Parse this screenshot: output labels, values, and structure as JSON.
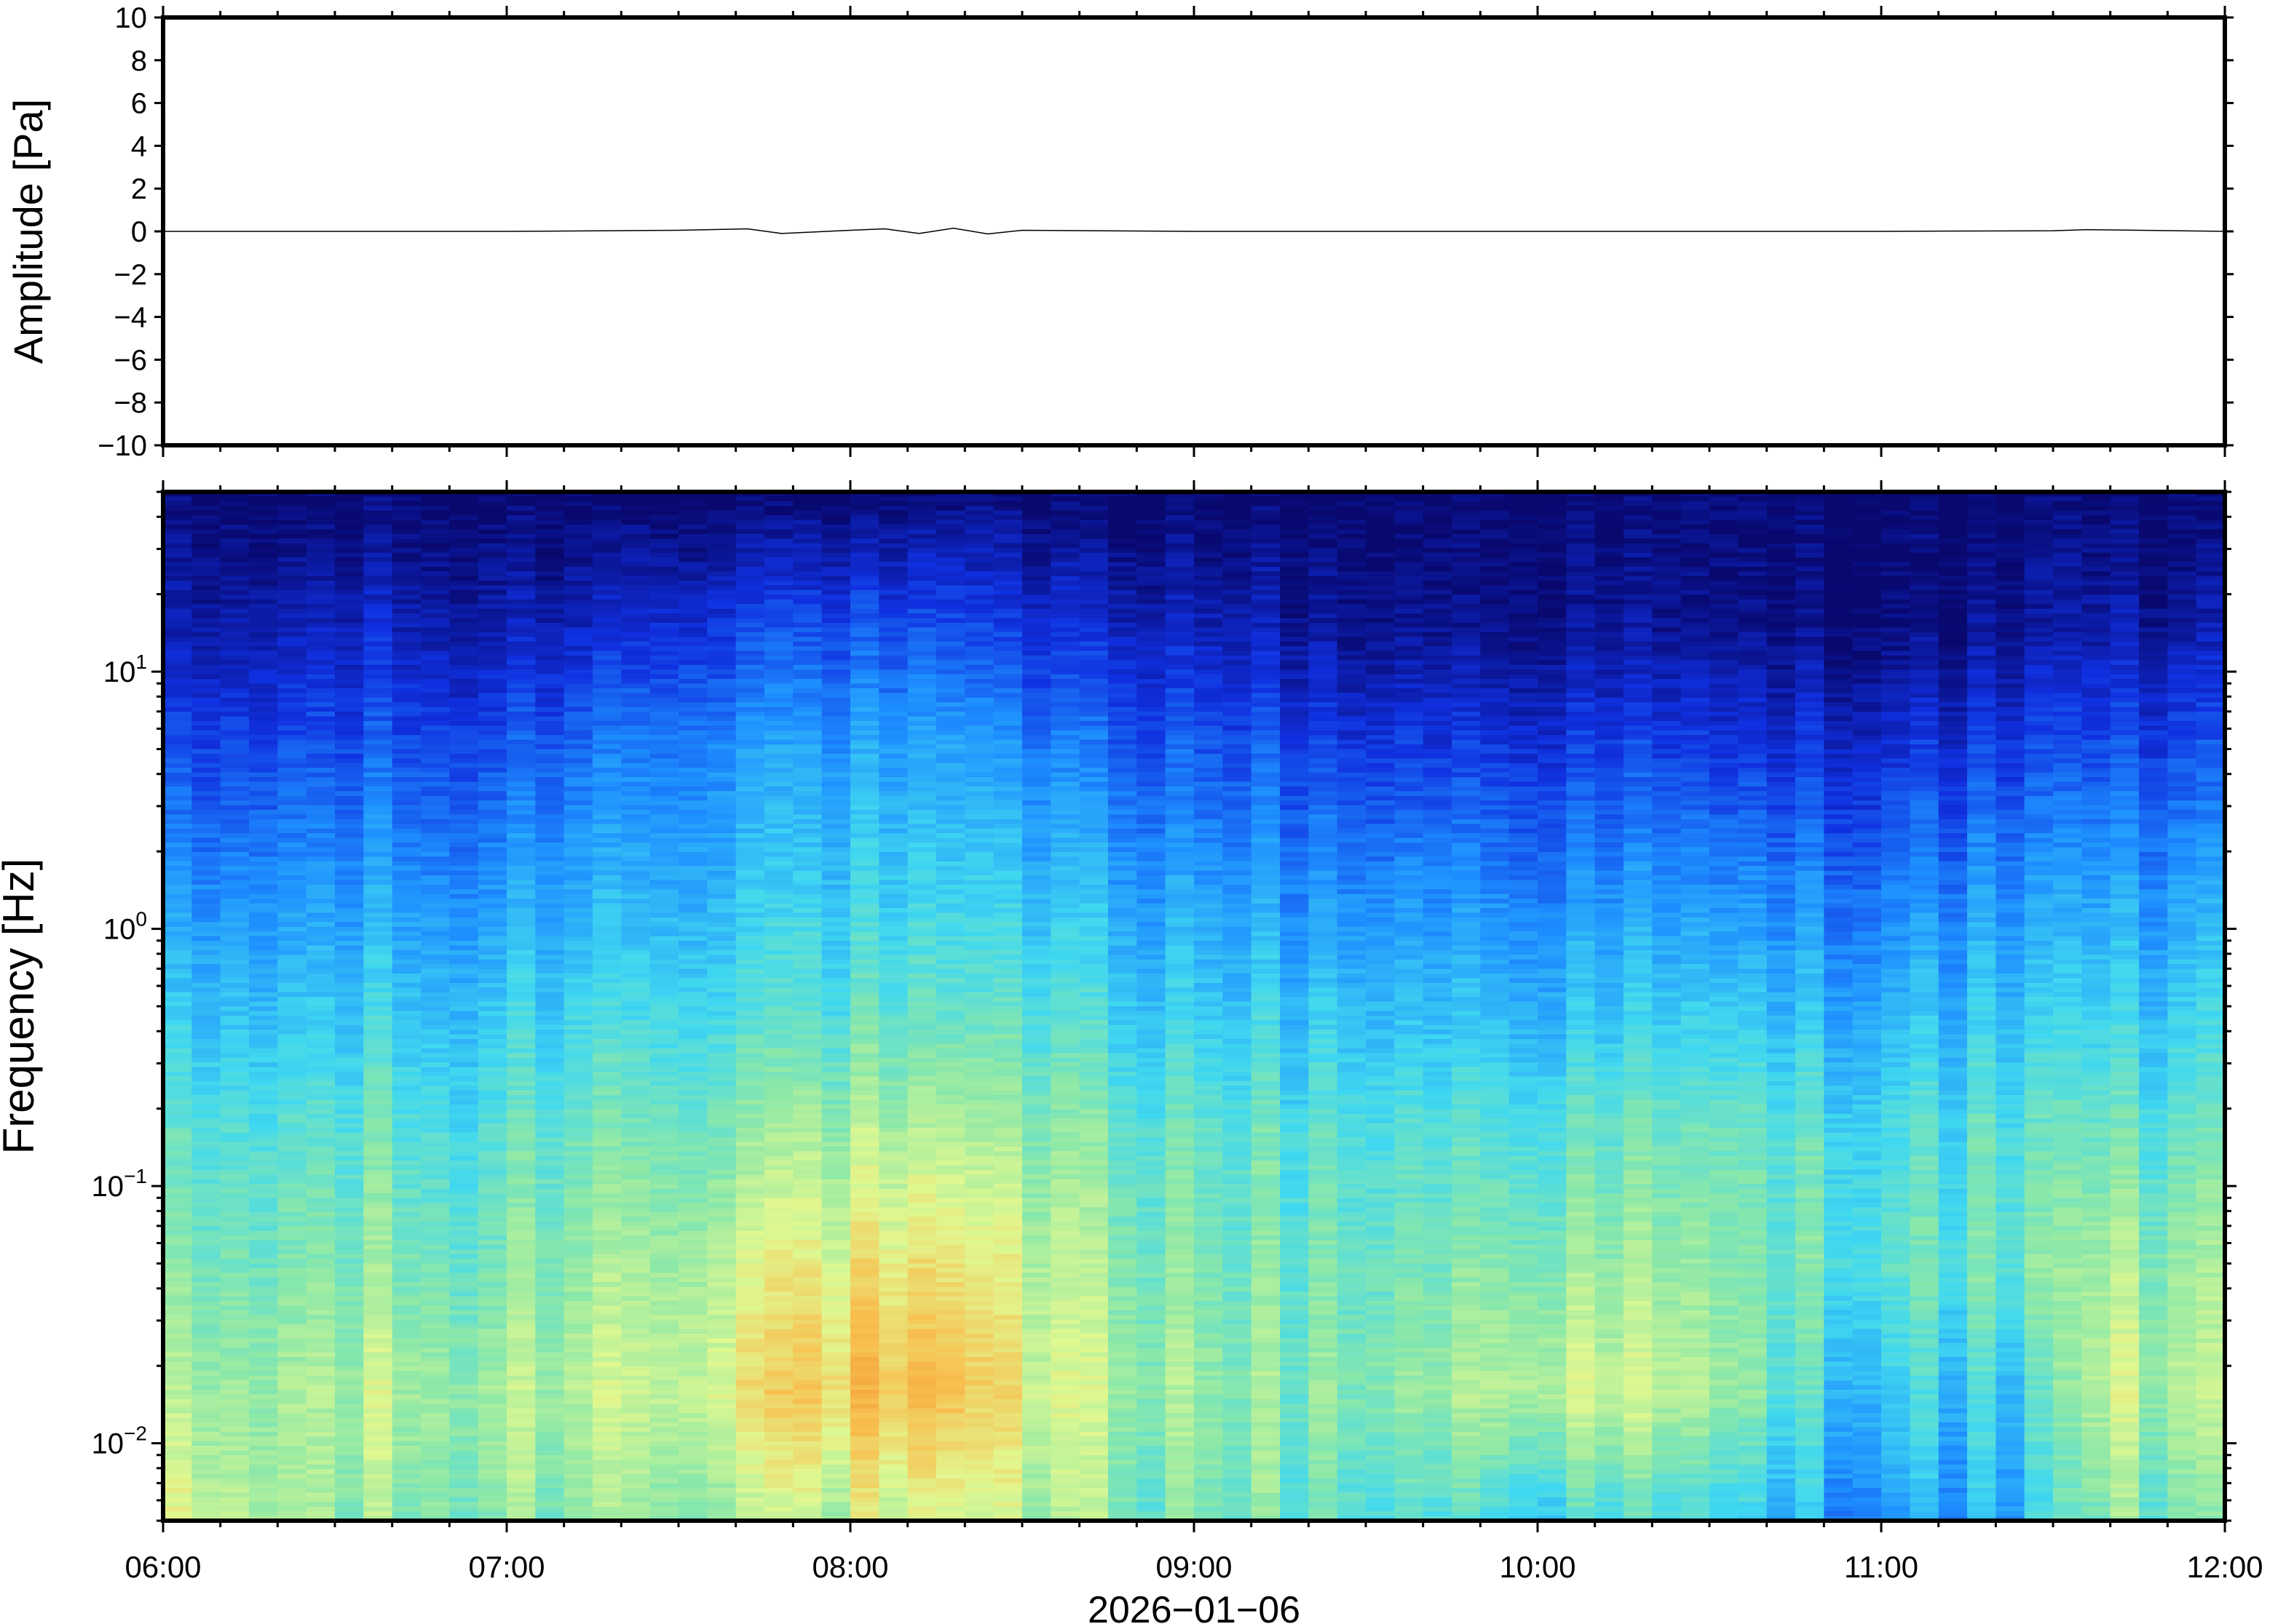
{
  "chart_data": [
    {
      "type": "line",
      "ylabel": "Amplitude [Pa]",
      "ylim": [
        -10,
        10
      ],
      "yticks": [
        10,
        8,
        6,
        4,
        2,
        0,
        -2,
        -4,
        -6,
        -8,
        -10
      ],
      "ytick_labels": [
        "10",
        "8",
        "6",
        "4",
        "2",
        "0",
        "−2",
        "−4",
        "−6",
        "−8",
        "−10"
      ],
      "xlim": [
        "06:00",
        "12:00"
      ],
      "series": [
        {
          "x": [
            "06:00",
            "06:30",
            "07:00",
            "07:30",
            "07:42",
            "07:48",
            "08:00",
            "08:06",
            "08:12",
            "08:18",
            "08:24",
            "08:30",
            "09:00",
            "09:30",
            "10:00",
            "10:30",
            "11:00",
            "11:30",
            "11:36",
            "12:00"
          ],
          "values": [
            0.0,
            0.0,
            0.0,
            0.05,
            0.12,
            -0.1,
            0.05,
            0.12,
            -0.1,
            0.15,
            -0.12,
            0.05,
            0.0,
            0.0,
            0.0,
            0.0,
            0.0,
            0.03,
            0.08,
            0.0
          ]
        }
      ],
      "grid": false
    },
    {
      "type": "heatmap",
      "ylabel": "Frequency [Hz]",
      "xlabel": "2026−01−06",
      "yscale": "log",
      "ylim": [
        0.005,
        50
      ],
      "yticks": [
        10,
        1,
        0.1,
        0.01
      ],
      "ytick_labels": [
        {
          "base": "10",
          "exp": "1"
        },
        {
          "base": "10",
          "exp": "0"
        },
        {
          "base": "10",
          "exp": "−1"
        },
        {
          "base": "10",
          "exp": "−2"
        }
      ],
      "xticks": [
        "06:00",
        "07:00",
        "08:00",
        "09:00",
        "10:00",
        "11:00",
        "12:00"
      ],
      "colormap": [
        "#08086e",
        "#1030e0",
        "#1e90ff",
        "#40d8f0",
        "#8ce8a8",
        "#e0f890",
        "#f8c050",
        "#f09030"
      ],
      "z_range": [
        0,
        1
      ],
      "time_columns": 72,
      "z": [
        [
          0.0,
          0.05,
          0.16,
          0.26,
          0.36,
          0.46,
          0.52,
          0.58,
          0.66
        ],
        [
          0.0,
          0.08,
          0.18,
          0.28,
          0.38,
          0.48,
          0.54,
          0.6,
          0.62
        ],
        [
          0.0,
          0.1,
          0.2,
          0.3,
          0.4,
          0.5,
          0.56,
          0.64,
          0.58
        ],
        [
          0.0,
          0.06,
          0.18,
          0.28,
          0.38,
          0.46,
          0.52,
          0.6,
          0.56
        ],
        [
          0.0,
          0.1,
          0.24,
          0.34,
          0.44,
          0.54,
          0.6,
          0.66,
          0.6
        ],
        [
          0.0,
          0.14,
          0.28,
          0.36,
          0.46,
          0.56,
          0.64,
          0.7,
          0.62
        ],
        [
          0.0,
          0.18,
          0.32,
          0.4,
          0.48,
          0.6,
          0.72,
          0.8,
          0.66
        ],
        [
          0.0,
          0.18,
          0.32,
          0.4,
          0.48,
          0.62,
          0.74,
          0.84,
          0.66
        ],
        [
          0.0,
          0.16,
          0.3,
          0.38,
          0.46,
          0.6,
          0.72,
          0.8,
          0.64
        ],
        [
          0.0,
          0.12,
          0.26,
          0.36,
          0.46,
          0.56,
          0.64,
          0.68,
          0.62
        ],
        [
          0.0,
          0.1,
          0.22,
          0.32,
          0.42,
          0.52,
          0.58,
          0.62,
          0.56
        ],
        [
          0.0,
          0.08,
          0.2,
          0.3,
          0.4,
          0.5,
          0.54,
          0.58,
          0.54
        ],
        [
          0.0,
          0.04,
          0.16,
          0.28,
          0.38,
          0.48,
          0.52,
          0.56,
          0.5
        ],
        [
          0.0,
          0.04,
          0.16,
          0.28,
          0.38,
          0.48,
          0.54,
          0.6,
          0.48
        ],
        [
          0.0,
          0.04,
          0.16,
          0.28,
          0.38,
          0.5,
          0.6,
          0.7,
          0.46
        ],
        [
          0.0,
          0.04,
          0.16,
          0.28,
          0.38,
          0.5,
          0.58,
          0.66,
          0.44
        ],
        [
          0.0,
          0.02,
          0.14,
          0.26,
          0.38,
          0.5,
          0.54,
          0.58,
          0.4
        ],
        [
          0.0,
          0.02,
          0.14,
          0.26,
          0.36,
          0.48,
          0.52,
          0.44,
          0.34
        ],
        [
          0.0,
          0.02,
          0.14,
          0.26,
          0.36,
          0.46,
          0.5,
          0.42,
          0.32
        ],
        [
          0.0,
          0.04,
          0.16,
          0.28,
          0.38,
          0.48,
          0.52,
          0.4,
          0.34
        ],
        [
          0.0,
          0.06,
          0.18,
          0.3,
          0.4,
          0.5,
          0.6,
          0.66,
          0.56
        ],
        [
          0.0,
          0.06,
          0.18,
          0.3,
          0.4,
          0.5,
          0.58,
          0.62,
          0.52
        ]
      ]
    }
  ]
}
